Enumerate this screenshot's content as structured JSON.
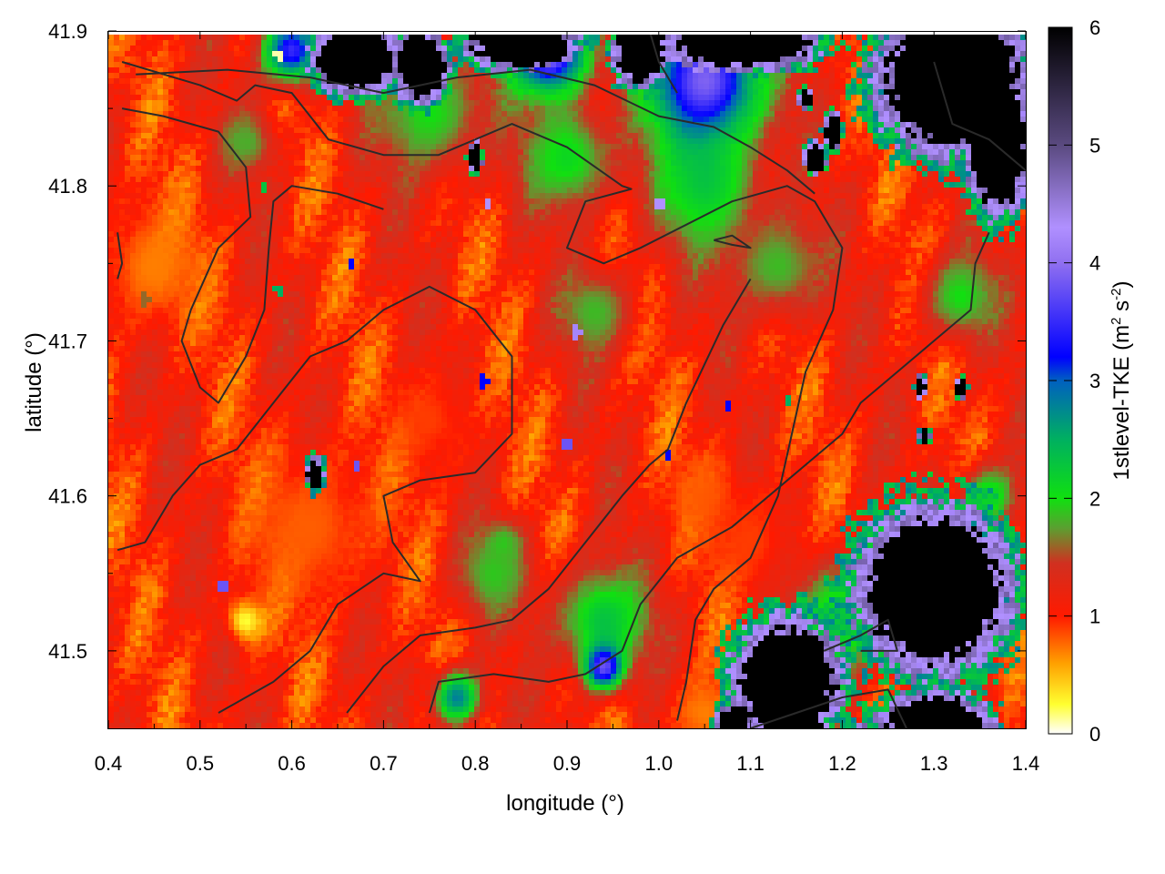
{
  "chart_data": {
    "type": "heatmap",
    "title": "",
    "xlabel": "longitude (°)",
    "ylabel": "latitude (°)",
    "xlim": [
      0.4,
      1.4
    ],
    "ylim": [
      41.45,
      41.9
    ],
    "x_ticks": [
      "0.4",
      "0.5",
      "0.6",
      "0.7",
      "0.8",
      "0.9",
      "1.0",
      "1.1",
      "1.2",
      "1.3",
      "1.4"
    ],
    "y_ticks": [
      "41.5",
      "41.6",
      "41.7",
      "41.8",
      "41.9"
    ],
    "colorbar": {
      "label_main": "1stlevel-TKE (m",
      "label_sup1": "2",
      "label_mid": " s",
      "label_sup2": "-2",
      "label_end": ")",
      "range": [
        0,
        6
      ],
      "ticks": [
        "0",
        "1",
        "2",
        "3",
        "4",
        "5",
        "6"
      ],
      "palette": [
        {
          "value": 0.0,
          "color": "#ffffff"
        },
        {
          "value": 0.25,
          "color": "#ffff30"
        },
        {
          "value": 0.6,
          "color": "#ffa000"
        },
        {
          "value": 1.0,
          "color": "#ff1a00"
        },
        {
          "value": 1.45,
          "color": "#d03020"
        },
        {
          "value": 1.75,
          "color": "#5aa030"
        },
        {
          "value": 2.0,
          "color": "#10e010"
        },
        {
          "value": 2.5,
          "color": "#00b060"
        },
        {
          "value": 3.0,
          "color": "#0060c0"
        },
        {
          "value": 3.2,
          "color": "#0000ff"
        },
        {
          "value": 4.0,
          "color": "#9070f0"
        },
        {
          "value": 4.3,
          "color": "#b090ff"
        },
        {
          "value": 5.0,
          "color": "#5a4a80"
        },
        {
          "value": 6.0,
          "color": "#000000"
        }
      ]
    },
    "field_features": [
      {
        "lon": 0.45,
        "lat": 41.75,
        "tke": 0.7,
        "spread": 0.06
      },
      {
        "lon": 0.55,
        "lat": 41.52,
        "tke": 0.15,
        "spread": 0.02
      },
      {
        "lon": 0.62,
        "lat": 41.58,
        "tke": 0.8,
        "spread": 0.08
      },
      {
        "lon": 0.75,
        "lat": 41.65,
        "tke": 0.9,
        "spread": 0.05
      },
      {
        "lon": 1.05,
        "lat": 41.6,
        "tke": 0.8,
        "spread": 0.04
      },
      {
        "lon": 1.1,
        "lat": 41.57,
        "tke": 0.9,
        "spread": 0.05
      },
      {
        "lon": 1.05,
        "lat": 41.46,
        "tke": 0.7,
        "spread": 0.04
      },
      {
        "lon": 0.75,
        "lat": 41.85,
        "tke": 2.0,
        "spread": 0.06
      },
      {
        "lon": 0.9,
        "lat": 41.82,
        "tke": 2.1,
        "spread": 0.05
      },
      {
        "lon": 1.05,
        "lat": 41.8,
        "tke": 2.2,
        "spread": 0.06
      },
      {
        "lon": 1.05,
        "lat": 41.87,
        "tke": 3.9,
        "spread": 0.06
      },
      {
        "lon": 0.88,
        "lat": 41.89,
        "tke": 4.2,
        "spread": 0.04
      },
      {
        "lon": 0.6,
        "lat": 41.89,
        "tke": 3.5,
        "spread": 0.03
      },
      {
        "lon": 0.82,
        "lat": 41.55,
        "tke": 1.9,
        "spread": 0.04
      },
      {
        "lon": 0.94,
        "lat": 41.52,
        "tke": 2.3,
        "spread": 0.05
      },
      {
        "lon": 0.94,
        "lat": 41.49,
        "tke": 3.8,
        "spread": 0.02
      },
      {
        "lon": 0.78,
        "lat": 41.47,
        "tke": 2.8,
        "spread": 0.025
      },
      {
        "lon": 1.2,
        "lat": 41.52,
        "tke": 2.3,
        "spread": 0.05
      },
      {
        "lon": 1.15,
        "lat": 41.46,
        "tke": 2.3,
        "spread": 0.035
      },
      {
        "lon": 1.33,
        "lat": 41.73,
        "tke": 2.0,
        "spread": 0.04
      },
      {
        "lon": 0.93,
        "lat": 41.72,
        "tke": 1.85,
        "spread": 0.04
      },
      {
        "lon": 1.13,
        "lat": 41.75,
        "tke": 1.85,
        "spread": 0.05
      },
      {
        "lon": 1.38,
        "lat": 41.85,
        "tke": 2.3,
        "spread": 0.04
      },
      {
        "lon": 0.55,
        "lat": 41.83,
        "tke": 1.8,
        "spread": 0.03
      },
      {
        "lon": 1.36,
        "lat": 41.6,
        "tke": 2.2,
        "spread": 0.03
      },
      {
        "lon": 0.83,
        "lat": 41.57,
        "tke": 1.9,
        "spread": 0.02
      }
    ],
    "black_regions": [
      {
        "lon": 1.3,
        "lat": 41.54,
        "rx": 0.07,
        "ry": 0.045
      },
      {
        "lon": 1.14,
        "lat": 41.48,
        "rx": 0.05,
        "ry": 0.035
      },
      {
        "lon": 1.3,
        "lat": 41.45,
        "rx": 0.05,
        "ry": 0.02
      },
      {
        "lon": 1.32,
        "lat": 41.87,
        "rx": 0.07,
        "ry": 0.04
      },
      {
        "lon": 1.37,
        "lat": 41.83,
        "rx": 0.03,
        "ry": 0.04
      },
      {
        "lon": 1.09,
        "lat": 41.895,
        "rx": 0.07,
        "ry": 0.015
      },
      {
        "lon": 0.85,
        "lat": 41.895,
        "rx": 0.05,
        "ry": 0.015
      },
      {
        "lon": 0.74,
        "lat": 41.88,
        "rx": 0.025,
        "ry": 0.02
      },
      {
        "lon": 0.98,
        "lat": 41.89,
        "rx": 0.025,
        "ry": 0.02
      },
      {
        "lon": 0.67,
        "lat": 41.885,
        "rx": 0.04,
        "ry": 0.02
      },
      {
        "lon": 1.17,
        "lat": 41.82,
        "rx": 0.01,
        "ry": 0.008
      },
      {
        "lon": 1.19,
        "lat": 41.838,
        "rx": 0.008,
        "ry": 0.01
      },
      {
        "lon": 0.625,
        "lat": 41.615,
        "rx": 0.008,
        "ry": 0.009
      },
      {
        "lon": 1.285,
        "lat": 41.672,
        "rx": 0.005,
        "ry": 0.006
      },
      {
        "lon": 1.29,
        "lat": 41.64,
        "rx": 0.005,
        "ry": 0.004
      },
      {
        "lon": 1.33,
        "lat": 41.67,
        "rx": 0.005,
        "ry": 0.006
      },
      {
        "lon": 0.8,
        "lat": 41.82,
        "rx": 0.006,
        "ry": 0.008
      },
      {
        "lon": 1.16,
        "lat": 41.858,
        "rx": 0.006,
        "ry": 0.006
      },
      {
        "lon": 1.26,
        "lat": 41.44,
        "rx": 0.06,
        "ry": 0.01
      },
      {
        "lon": 1.08,
        "lat": 41.455,
        "rx": 0.015,
        "ry": 0.008
      }
    ],
    "dots": [
      {
        "lon": 0.81,
        "lat": 41.675,
        "tke": 3.2
      },
      {
        "lon": 1.075,
        "lat": 41.658,
        "tke": 3.2
      },
      {
        "lon": 1.01,
        "lat": 41.628,
        "tke": 3.2
      },
      {
        "lon": 0.9,
        "lat": 41.633,
        "tke": 3.8
      },
      {
        "lon": 0.67,
        "lat": 41.62,
        "tke": 3.8
      },
      {
        "lon": 0.525,
        "lat": 41.542,
        "tke": 3.8
      },
      {
        "lon": 0.57,
        "lat": 41.8,
        "tke": 2.3
      },
      {
        "lon": 0.585,
        "lat": 41.735,
        "tke": 2.5
      },
      {
        "lon": 0.665,
        "lat": 41.752,
        "tke": 3.2
      },
      {
        "lon": 0.815,
        "lat": 41.79,
        "tke": 4.3
      },
      {
        "lon": 1.0,
        "lat": 41.79,
        "tke": 4.3
      },
      {
        "lon": 0.44,
        "lat": 41.728,
        "tke": 1.6
      },
      {
        "lon": 0.585,
        "lat": 41.887,
        "tke": 0.1
      },
      {
        "lon": 0.91,
        "lat": 41.707,
        "tke": 4.2
      },
      {
        "lon": 1.14,
        "lat": 41.662,
        "tke": 2.5
      }
    ],
    "contours": [
      [
        [
          0.415,
          41.88
        ],
        [
          0.5,
          41.865
        ],
        [
          0.54,
          41.855
        ],
        [
          0.56,
          41.865
        ],
        [
          0.6,
          41.86
        ],
        [
          0.64,
          41.83
        ],
        [
          0.7,
          41.82
        ],
        [
          0.76,
          41.82
        ],
        [
          0.84,
          41.84
        ],
        [
          0.9,
          41.825
        ],
        [
          0.96,
          41.8
        ],
        [
          0.97,
          41.798
        ],
        [
          0.92,
          41.79
        ],
        [
          0.9,
          41.76
        ],
        [
          0.94,
          41.75
        ],
        [
          0.98,
          41.76
        ],
        [
          1.03,
          41.775
        ],
        [
          1.08,
          41.79
        ],
        [
          1.14,
          41.8
        ],
        [
          1.17,
          41.79
        ],
        [
          1.2,
          41.76
        ],
        [
          1.19,
          41.72
        ],
        [
          1.16,
          41.68
        ],
        [
          1.145,
          41.64
        ],
        [
          1.13,
          41.6
        ],
        [
          1.1,
          41.56
        ],
        [
          1.06,
          41.54
        ],
        [
          1.04,
          41.52
        ],
        [
          1.03,
          41.48
        ],
        [
          1.02,
          41.455
        ]
      ],
      [
        [
          0.43,
          41.872
        ],
        [
          0.53,
          41.875
        ],
        [
          0.62,
          41.87
        ],
        [
          0.7,
          41.86
        ],
        [
          0.78,
          41.87
        ],
        [
          0.86,
          41.875
        ],
        [
          0.93,
          41.865
        ],
        [
          1.0,
          41.845
        ],
        [
          1.06,
          41.838
        ],
        [
          1.1,
          41.825
        ],
        [
          1.14,
          41.81
        ],
        [
          1.17,
          41.795
        ]
      ],
      [
        [
          0.415,
          41.85
        ],
        [
          0.46,
          41.845
        ],
        [
          0.52,
          41.835
        ],
        [
          0.55,
          41.812
        ],
        [
          0.555,
          41.78
        ],
        [
          0.52,
          41.76
        ],
        [
          0.49,
          41.72
        ],
        [
          0.48,
          41.7
        ],
        [
          0.5,
          41.67
        ],
        [
          0.52,
          41.66
        ],
        [
          0.55,
          41.69
        ],
        [
          0.57,
          41.72
        ],
        [
          0.575,
          41.76
        ],
        [
          0.58,
          41.79
        ],
        [
          0.6,
          41.8
        ],
        [
          0.65,
          41.795
        ],
        [
          0.7,
          41.785
        ]
      ],
      [
        [
          0.41,
          41.565
        ],
        [
          0.44,
          41.57
        ],
        [
          0.47,
          41.6
        ],
        [
          0.5,
          41.62
        ],
        [
          0.54,
          41.63
        ],
        [
          0.58,
          41.66
        ],
        [
          0.62,
          41.69
        ],
        [
          0.66,
          41.7
        ],
        [
          0.7,
          41.72
        ],
        [
          0.75,
          41.735
        ],
        [
          0.8,
          41.72
        ],
        [
          0.84,
          41.69
        ],
        [
          0.84,
          41.64
        ],
        [
          0.8,
          41.615
        ],
        [
          0.74,
          41.61
        ],
        [
          0.7,
          41.6
        ],
        [
          0.71,
          41.57
        ],
        [
          0.74,
          41.545
        ],
        [
          0.7,
          41.55
        ],
        [
          0.65,
          41.53
        ],
        [
          0.62,
          41.5
        ],
        [
          0.58,
          41.48
        ],
        [
          0.52,
          41.46
        ]
      ],
      [
        [
          0.66,
          41.46
        ],
        [
          0.7,
          41.49
        ],
        [
          0.74,
          41.51
        ],
        [
          0.8,
          41.515
        ],
        [
          0.84,
          41.52
        ],
        [
          0.88,
          41.54
        ],
        [
          0.92,
          41.57
        ],
        [
          0.96,
          41.6
        ],
        [
          0.99,
          41.62
        ],
        [
          1.01,
          41.63
        ],
        [
          1.03,
          41.66
        ],
        [
          1.07,
          41.71
        ],
        [
          1.1,
          41.74
        ]
      ],
      [
        [
          0.75,
          41.46
        ],
        [
          0.76,
          41.48
        ],
        [
          0.82,
          41.485
        ],
        [
          0.88,
          41.48
        ],
        [
          0.92,
          41.485
        ],
        [
          0.96,
          41.5
        ],
        [
          0.98,
          41.53
        ],
        [
          1.02,
          41.56
        ],
        [
          1.08,
          41.58
        ],
        [
          1.12,
          41.6
        ],
        [
          1.16,
          41.62
        ],
        [
          1.2,
          41.64
        ],
        [
          1.22,
          41.66
        ],
        [
          1.26,
          41.68
        ],
        [
          1.3,
          41.7
        ],
        [
          1.34,
          41.72
        ],
        [
          1.345,
          41.75
        ],
        [
          1.36,
          41.77
        ]
      ],
      [
        [
          1.1,
          41.45
        ],
        [
          1.15,
          41.46
        ],
        [
          1.2,
          41.47
        ],
        [
          1.25,
          41.475
        ],
        [
          1.27,
          41.45
        ]
      ],
      [
        [
          1.18,
          41.5
        ],
        [
          1.22,
          41.51
        ],
        [
          1.25,
          41.52
        ],
        [
          1.26,
          41.5
        ],
        [
          1.22,
          41.5
        ]
      ],
      [
        [
          1.06,
          41.765
        ],
        [
          1.08,
          41.768
        ],
        [
          1.1,
          41.76
        ],
        [
          1.08,
          41.762
        ],
        [
          1.06,
          41.765
        ]
      ],
      [
        [
          0.41,
          41.77
        ],
        [
          0.415,
          41.75
        ],
        [
          0.41,
          41.74
        ]
      ],
      [
        [
          1.3,
          41.88
        ],
        [
          1.32,
          41.84
        ],
        [
          1.36,
          41.83
        ],
        [
          1.4,
          41.81
        ]
      ],
      [
        [
          0.99,
          41.9
        ],
        [
          1.0,
          41.88
        ],
        [
          1.02,
          41.86
        ]
      ]
    ]
  }
}
